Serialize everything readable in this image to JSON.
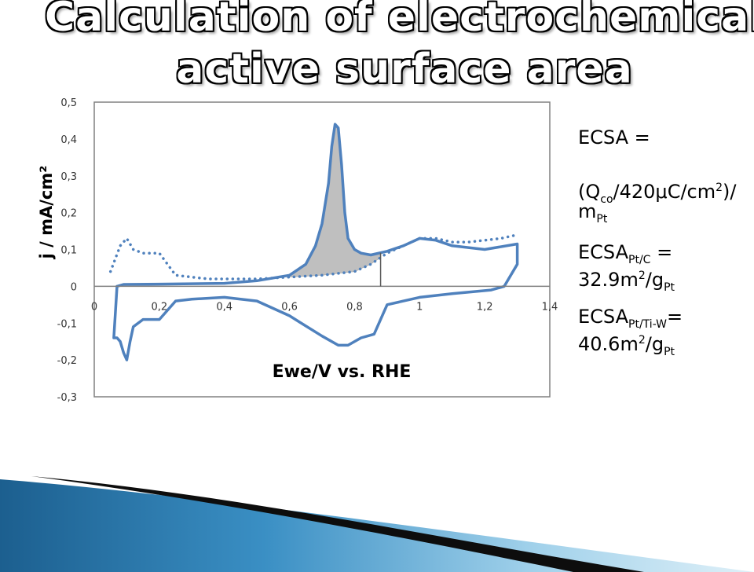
{
  "slide": {
    "title_line1": "Calculation of electrochemical",
    "title_line2": "active surface area"
  },
  "equations": {
    "ecsa_label": "ECSA =",
    "qco_open": "(Q",
    "qco_sub": "co",
    "qco_rest": "/420μC/cm",
    "qco_sup": "2",
    "qco_close": ")/",
    "mass_m": "m",
    "mass_sub": "Pt",
    "ptc_ecsa": "ECSA",
    "ptc_sub": "Pt/C",
    "ptc_eq": " =",
    "ptc_value": "32.9m",
    "ptc_sup": "2",
    "ptc_unit": "/g",
    "ptc_unit_sub": "Pt",
    "tiw_ecsa": "ECSA",
    "tiw_sub": "Pt/Ti-W",
    "tiw_eq": "=",
    "tiw_value": "40.6m",
    "tiw_sup": "2",
    "tiw_unit": "/g",
    "tiw_unit_sub": "Pt"
  },
  "chart_data": {
    "type": "line",
    "title": "",
    "xlabel": "Ewe/V vs. RHE",
    "ylabel": "j / mA/cm²",
    "xlim": [
      0,
      1.4
    ],
    "ylim": [
      -0.3,
      0.5
    ],
    "x_ticks": [
      "0",
      "0,2",
      "0,4",
      "0,6",
      "0,8",
      "1",
      "1,2",
      "1,4"
    ],
    "y_ticks": [
      "-0,3",
      "-0,2",
      "-0,1",
      "0",
      "0,1",
      "0,2",
      "0,3",
      "0,4",
      "0,5"
    ],
    "grid": false,
    "colors": {
      "curve": "#4f81bd",
      "shade": "#bfbfbf",
      "vline": "#595959"
    },
    "shaded_region": {
      "x_start": 0.6,
      "x_end": 0.88
    },
    "series": [
      {
        "style": "solid",
        "x": [
          0.07,
          0.09,
          0.2,
          0.4,
          0.5,
          0.6,
          0.65,
          0.68,
          0.7,
          0.72,
          0.73,
          0.74,
          0.75,
          0.76,
          0.77,
          0.78,
          0.8,
          0.82,
          0.85,
          0.9,
          0.95,
          1.0,
          1.05,
          1.1,
          1.2,
          1.3,
          1.3,
          1.26,
          1.22,
          1.1,
          1.0,
          0.9,
          0.86,
          0.82,
          0.78,
          0.75,
          0.7,
          0.6,
          0.5,
          0.4,
          0.3,
          0.25,
          0.2,
          0.15,
          0.12,
          0.11,
          0.1,
          0.09,
          0.08,
          0.07,
          0.06,
          0.07
        ],
        "y": [
          0.0,
          0.005,
          0.006,
          0.008,
          0.015,
          0.03,
          0.06,
          0.11,
          0.17,
          0.28,
          0.38,
          0.44,
          0.43,
          0.33,
          0.2,
          0.13,
          0.1,
          0.09,
          0.085,
          0.095,
          0.11,
          0.13,
          0.125,
          0.11,
          0.1,
          0.115,
          0.06,
          0.0,
          -0.01,
          -0.02,
          -0.03,
          -0.05,
          -0.13,
          -0.14,
          -0.16,
          -0.16,
          -0.135,
          -0.08,
          -0.04,
          -0.03,
          -0.035,
          -0.04,
          -0.09,
          -0.09,
          -0.11,
          -0.15,
          -0.2,
          -0.18,
          -0.15,
          -0.14,
          -0.14,
          0.0
        ]
      },
      {
        "style": "dotted",
        "x": [
          0.05,
          0.08,
          0.1,
          0.12,
          0.15,
          0.2,
          0.25,
          0.3,
          0.35,
          0.4,
          0.5,
          0.6,
          0.7,
          0.8,
          0.85,
          0.9,
          0.95,
          1.0,
          1.05,
          1.1,
          1.15,
          1.2,
          1.25,
          1.3
        ],
        "y": [
          0.04,
          0.11,
          0.13,
          0.1,
          0.09,
          0.09,
          0.03,
          0.025,
          0.02,
          0.02,
          0.02,
          0.025,
          0.03,
          0.04,
          0.06,
          0.09,
          0.11,
          0.13,
          0.13,
          0.12,
          0.12,
          0.125,
          0.13,
          0.14
        ]
      }
    ]
  }
}
